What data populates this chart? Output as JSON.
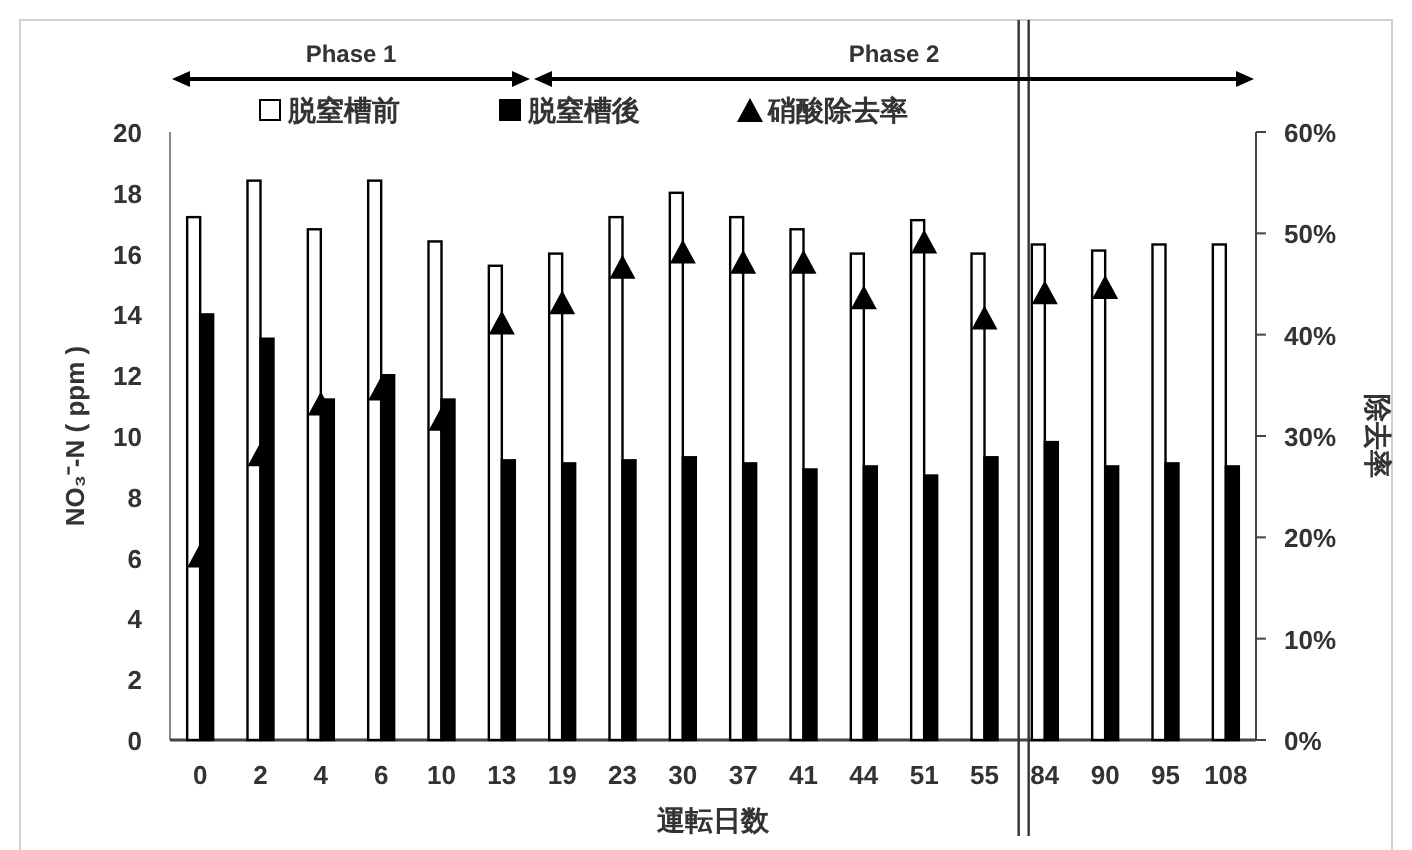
{
  "chart_data": {
    "type": "bar",
    "xlabel": "運転日数",
    "ylabel": "NO₃⁻-N ( ppm )",
    "y2label": "除去率",
    "categories": [
      "0",
      "2",
      "4",
      "6",
      "10",
      "13",
      "19",
      "23",
      "30",
      "37",
      "41",
      "44",
      "51",
      "55",
      "84",
      "90",
      "95",
      "108"
    ],
    "series": [
      {
        "name": "脱窒槽前",
        "color": "#ffffff",
        "values": [
          17.2,
          18.4,
          16.8,
          18.4,
          16.4,
          15.6,
          16.0,
          17.2,
          18.0,
          17.2,
          16.8,
          16.0,
          17.1,
          16.0,
          16.3,
          16.1,
          16.3,
          16.3
        ]
      },
      {
        "name": "脱窒槽後",
        "color": "#000000",
        "values": [
          14.0,
          13.2,
          11.2,
          12.0,
          11.2,
          9.2,
          9.1,
          9.2,
          9.3,
          9.1,
          8.9,
          9.0,
          8.7,
          9.3,
          9.8,
          9.0,
          9.1,
          9.0
        ]
      },
      {
        "name": "硝酸除去率",
        "type": "scatter",
        "axis": "y2",
        "marker": "triangle",
        "color": "#000000",
        "values": [
          18,
          28,
          33,
          34.5,
          31.5,
          41,
          43,
          46.5,
          48,
          47,
          47,
          43.5,
          49,
          41.5,
          44,
          44.5,
          null,
          null
        ]
      }
    ],
    "ylim": [
      0,
      20
    ],
    "yticks": [
      0,
      2,
      4,
      6,
      8,
      10,
      12,
      14,
      16,
      18,
      20
    ],
    "y2lim": [
      0,
      60
    ],
    "y2ticks": [
      {
        "value": 0,
        "label": "0%"
      },
      {
        "value": 10,
        "label": "10%"
      },
      {
        "value": 20,
        "label": "20%"
      },
      {
        "value": 30,
        "label": "30%"
      },
      {
        "value": 40,
        "label": "40%"
      },
      {
        "value": 50,
        "label": "50%"
      },
      {
        "value": 60,
        "label": "60%"
      }
    ],
    "annotations": [
      "Phase 1",
      "Phase 2"
    ],
    "legend": "top",
    "grid": false
  }
}
